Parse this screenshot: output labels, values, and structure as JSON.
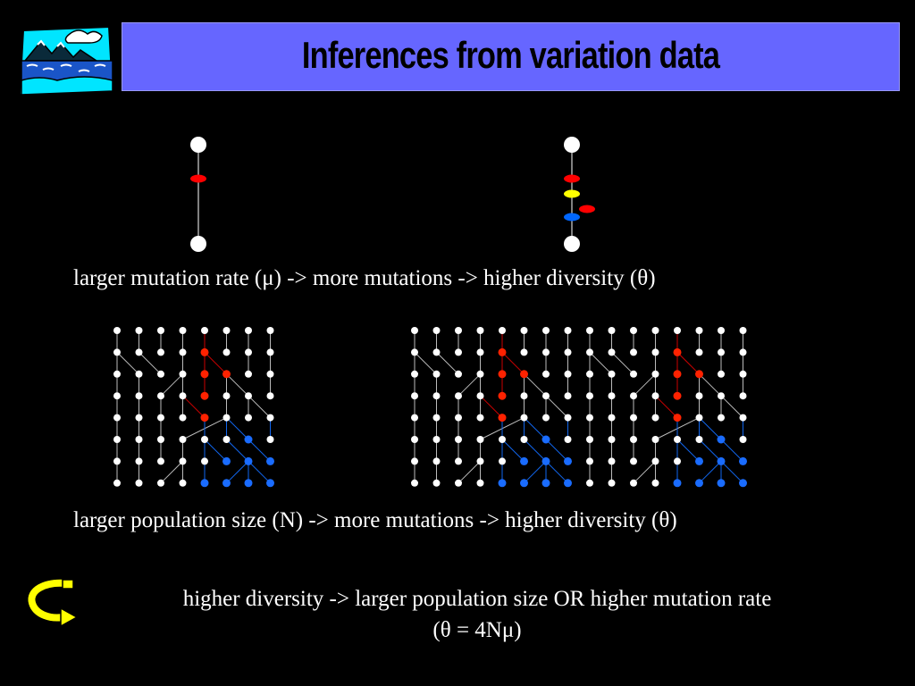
{
  "title": "Inferences from variation data",
  "lines": {
    "mutation_rate": "larger mutation rate (μ) -> more mutations -> higher diversity (θ)",
    "population_size": "larger population size (N) -> more mutations -> higher diversity (θ)",
    "conclusion_1": "higher diversity -> larger population size OR higher mutation rate",
    "conclusion_2": "(θ = 4Nμ)"
  },
  "colors": {
    "background": "#000000",
    "title_bar": "#6666ff",
    "mutation_red": "#ff0000",
    "mutation_yellow": "#ffff00",
    "mutation_blue": "#0066ff",
    "lineage_red": "#cc0000",
    "lineage_blue": "#1166ee",
    "arrow_yellow": "#ffff00"
  },
  "icons": {
    "logo": "landscape-clipart-icon",
    "arrow": "curved-arrow-icon"
  }
}
